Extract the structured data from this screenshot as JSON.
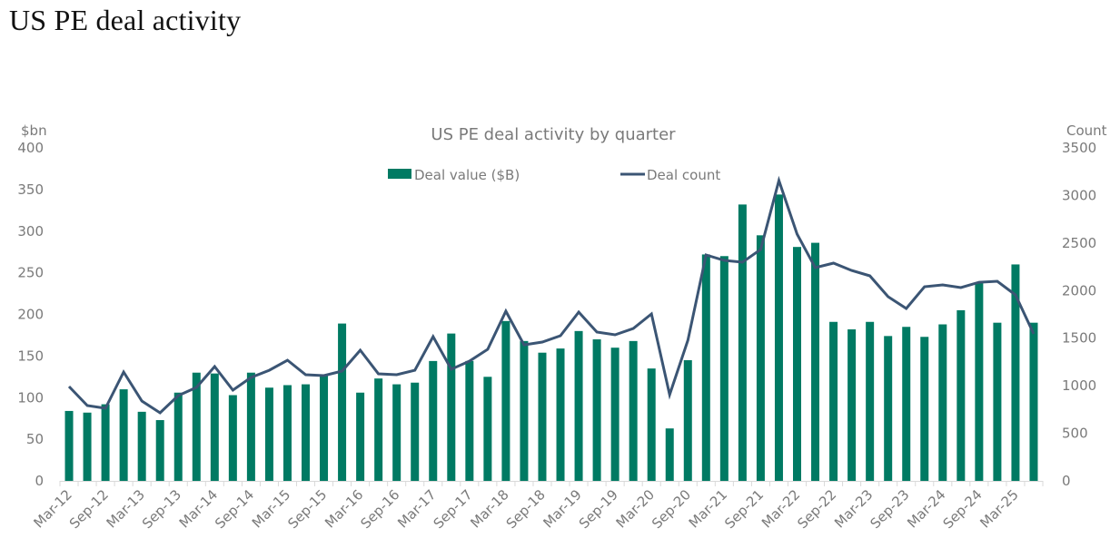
{
  "page": {
    "title": "US PE deal activity"
  },
  "chart_data": {
    "type": "bar+line",
    "title": "US PE deal activity by quarter",
    "left_axis": {
      "label": "$bn",
      "range": [
        0,
        400
      ],
      "ticks": [
        "0",
        "50",
        "100",
        "150",
        "200",
        "250",
        "300",
        "350",
        "400"
      ]
    },
    "right_axis": {
      "label": "Count",
      "range": [
        0,
        3500
      ],
      "ticks": [
        "0",
        "500",
        "1000",
        "1500",
        "2000",
        "2500",
        "3000",
        "3500"
      ]
    },
    "legend": {
      "placement": "top-center"
    },
    "grid": false,
    "colors": {
      "bar": "#007A63",
      "line": "#3B5574",
      "axis_text": "#7a7a7a",
      "axis_line": "#d9d9d9"
    },
    "categories": [
      "Mar-12",
      "Jun-12",
      "Sep-12",
      "Dec-12",
      "Mar-13",
      "Jun-13",
      "Sep-13",
      "Dec-13",
      "Mar-14",
      "Jun-14",
      "Sep-14",
      "Dec-14",
      "Mar-15",
      "Jun-15",
      "Sep-15",
      "Dec-15",
      "Mar-16",
      "Jun-16",
      "Sep-16",
      "Dec-16",
      "Mar-17",
      "Jun-17",
      "Sep-17",
      "Dec-17",
      "Mar-18",
      "Jun-18",
      "Sep-18",
      "Dec-18",
      "Mar-19",
      "Jun-19",
      "Sep-19",
      "Dec-19",
      "Mar-20",
      "Jun-20",
      "Sep-20",
      "Dec-20",
      "Mar-21",
      "Jun-21",
      "Sep-21",
      "Dec-21",
      "Mar-22",
      "Jun-22",
      "Sep-22",
      "Dec-22",
      "Mar-23",
      "Jun-23",
      "Sep-23",
      "Dec-23",
      "Mar-24",
      "Jun-24",
      "Sep-24",
      "Dec-24",
      "Mar-25",
      "Jun-25"
    ],
    "tick_labels_shown": [
      "Mar-12",
      "Sep-12",
      "Mar-13",
      "Sep-13",
      "Mar-14",
      "Sep-14",
      "Mar-15",
      "Sep-15",
      "Mar-16",
      "Sep-16",
      "Mar-17",
      "Sep-17",
      "Mar-18",
      "Sep-18",
      "Mar-19",
      "Sep-19",
      "Mar-20",
      "Sep-20",
      "Mar-21",
      "Sep-21",
      "Mar-22",
      "Sep-22",
      "Mar-23",
      "Sep-23",
      "Mar-24",
      "Sep-24",
      "Mar-25"
    ],
    "series": [
      {
        "name": "Deal value ($B)",
        "type": "bar",
        "axis": "left",
        "values": [
          84,
          82,
          92,
          110,
          83,
          73,
          106,
          130,
          129,
          103,
          130,
          112,
          115,
          116,
          127,
          189,
          106,
          123,
          116,
          118,
          144,
          177,
          144,
          125,
          192,
          168,
          154,
          159,
          180,
          170,
          160,
          168,
          135,
          63,
          145,
          272,
          270,
          332,
          295,
          344,
          281,
          286,
          191,
          182,
          191,
          174,
          185,
          173,
          188,
          205,
          238,
          190,
          260,
          190
        ]
      },
      {
        "name": "Deal count",
        "type": "line",
        "axis": "right",
        "values": [
          992,
          792,
          763,
          1144,
          839,
          715,
          896,
          982,
          1202,
          954,
          1087,
          1163,
          1268,
          1116,
          1106,
          1154,
          1373,
          1125,
          1116,
          1163,
          1516,
          1173,
          1259,
          1383,
          1783,
          1430,
          1459,
          1526,
          1774,
          1564,
          1535,
          1602,
          1755,
          906,
          1478,
          2375,
          2317,
          2298,
          2432,
          3157,
          2594,
          2241,
          2289,
          2212,
          2155,
          1936,
          1812,
          2041,
          2060,
          2031,
          2088,
          2098,
          1955,
          1545
        ]
      }
    ]
  }
}
